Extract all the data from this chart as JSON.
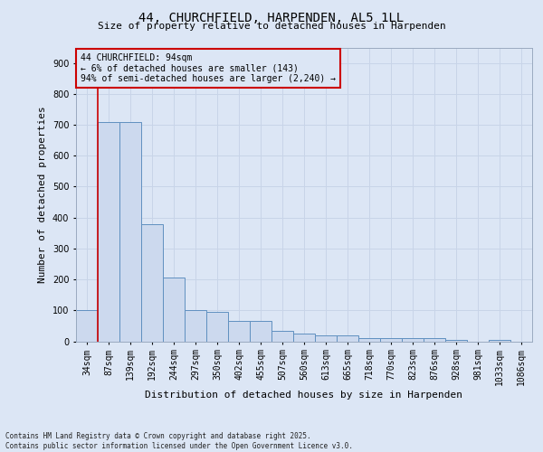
{
  "title1": "44, CHURCHFIELD, HARPENDEN, AL5 1LL",
  "title2": "Size of property relative to detached houses in Harpenden",
  "xlabel": "Distribution of detached houses by size in Harpenden",
  "ylabel": "Number of detached properties",
  "categories": [
    "34sqm",
    "87sqm",
    "139sqm",
    "192sqm",
    "244sqm",
    "297sqm",
    "350sqm",
    "402sqm",
    "455sqm",
    "507sqm",
    "560sqm",
    "613sqm",
    "665sqm",
    "718sqm",
    "770sqm",
    "823sqm",
    "876sqm",
    "928sqm",
    "981sqm",
    "1033sqm",
    "1086sqm"
  ],
  "values": [
    100,
    710,
    710,
    380,
    205,
    100,
    95,
    65,
    65,
    35,
    25,
    20,
    20,
    10,
    10,
    10,
    10,
    5,
    0,
    5,
    0
  ],
  "bar_color": "#ccd9ee",
  "bar_edge_color": "#6090c0",
  "grid_color": "#c8d4e8",
  "background_color": "#dce6f5",
  "annotation_box_color": "#cc0000",
  "property_line_color": "#cc0000",
  "property_line_x": 0.5,
  "annotation_text": "44 CHURCHFIELD: 94sqm\n← 6% of detached houses are smaller (143)\n94% of semi-detached houses are larger (2,240) →",
  "footer_text": "Contains HM Land Registry data © Crown copyright and database right 2025.\nContains public sector information licensed under the Open Government Licence v3.0.",
  "ylim": [
    0,
    950
  ],
  "yticks": [
    0,
    100,
    200,
    300,
    400,
    500,
    600,
    700,
    800,
    900
  ],
  "title1_fontsize": 10,
  "title2_fontsize": 8,
  "ylabel_fontsize": 8,
  "xlabel_fontsize": 8,
  "tick_fontsize": 7,
  "annotation_fontsize": 7,
  "footer_fontsize": 5.5
}
